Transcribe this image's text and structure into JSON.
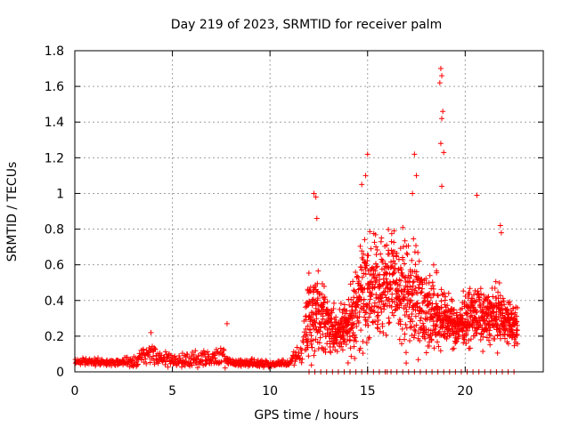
{
  "chart_data": {
    "type": "scatter",
    "title": "Day 219 of 2023, SRMTID for receiver palm",
    "xlabel": "GPS time / hours",
    "ylabel": "SRMTID / TECUs",
    "xlim": [
      0,
      24
    ],
    "ylim": [
      0,
      1.8
    ],
    "xticks": [
      0,
      5,
      10,
      15,
      20
    ],
    "yticks": [
      0,
      0.2,
      0.4,
      0.6,
      0.8,
      1,
      1.2,
      1.4,
      1.6,
      1.8
    ],
    "ytick_labels": [
      "0",
      "0.2",
      "0.4",
      "0.6",
      "0.8",
      "1",
      "1.2",
      "1.4",
      "1.6",
      "1.8"
    ],
    "grid": true,
    "marker": "+",
    "series_color": "#ff0000",
    "envelope": {
      "x": [
        0,
        1,
        2,
        3,
        3.5,
        4,
        4.5,
        5,
        6,
        6.5,
        7,
        7.5,
        8,
        9,
        10,
        11,
        11.5,
        12,
        12.5,
        13,
        13.5,
        14,
        14.5,
        15,
        15.5,
        16,
        16.5,
        17,
        17.5,
        18,
        18.5,
        19,
        19.5,
        20,
        20.5,
        21,
        21.5,
        22,
        22.5
      ],
      "y": [
        0.06,
        0.06,
        0.05,
        0.06,
        0.08,
        0.11,
        0.07,
        0.06,
        0.07,
        0.08,
        0.07,
        0.08,
        0.05,
        0.05,
        0.04,
        0.05,
        0.1,
        0.32,
        0.35,
        0.25,
        0.22,
        0.25,
        0.4,
        0.5,
        0.45,
        0.52,
        0.5,
        0.42,
        0.45,
        0.35,
        0.32,
        0.3,
        0.25,
        0.3,
        0.32,
        0.3,
        0.32,
        0.3,
        0.25
      ],
      "spread": [
        0.02,
        0.02,
        0.02,
        0.03,
        0.05,
        0.06,
        0.04,
        0.03,
        0.04,
        0.05,
        0.04,
        0.06,
        0.02,
        0.02,
        0.02,
        0.02,
        0.06,
        0.2,
        0.2,
        0.12,
        0.1,
        0.12,
        0.25,
        0.3,
        0.25,
        0.25,
        0.25,
        0.3,
        0.3,
        0.2,
        0.2,
        0.12,
        0.1,
        0.12,
        0.15,
        0.12,
        0.15,
        0.12,
        0.1
      ]
    },
    "extremes": [
      {
        "x": 12.25,
        "y": 1.0
      },
      {
        "x": 12.35,
        "y": 0.98
      },
      {
        "x": 12.4,
        "y": 0.86
      },
      {
        "x": 14.7,
        "y": 1.05
      },
      {
        "x": 14.9,
        "y": 1.1
      },
      {
        "x": 15.0,
        "y": 1.22
      },
      {
        "x": 17.4,
        "y": 1.22
      },
      {
        "x": 17.5,
        "y": 1.1
      },
      {
        "x": 17.3,
        "y": 1.0
      },
      {
        "x": 18.75,
        "y": 1.7
      },
      {
        "x": 18.8,
        "y": 1.66
      },
      {
        "x": 18.7,
        "y": 1.62
      },
      {
        "x": 18.85,
        "y": 1.46
      },
      {
        "x": 18.8,
        "y": 1.42
      },
      {
        "x": 18.75,
        "y": 1.28
      },
      {
        "x": 18.9,
        "y": 1.23
      },
      {
        "x": 18.8,
        "y": 1.04
      },
      {
        "x": 20.6,
        "y": 0.99
      },
      {
        "x": 21.8,
        "y": 0.82
      },
      {
        "x": 21.85,
        "y": 0.78
      },
      {
        "x": 7.8,
        "y": 0.27
      },
      {
        "x": 3.9,
        "y": 0.22
      },
      {
        "x": 14.0,
        "y": 0.05
      },
      {
        "x": 16.0,
        "y": 0.0
      }
    ]
  }
}
